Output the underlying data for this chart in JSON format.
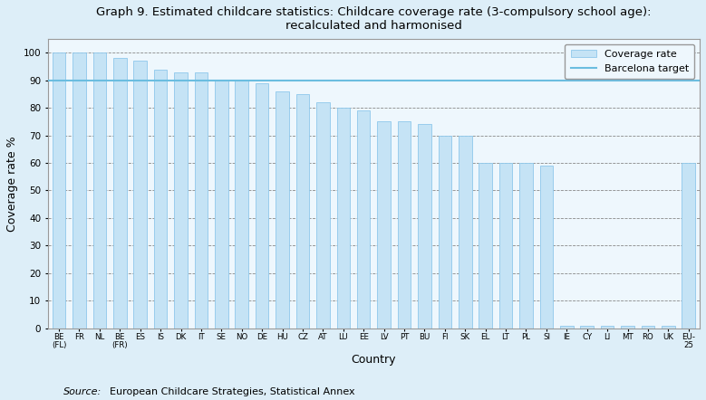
{
  "title": "Graph 9. Estimated childcare statistics: Childcare coverage rate (3-compulsory school age):\nrecalculated and harmonised",
  "xlabel": "Country",
  "ylabel": "Coverage rate %",
  "source_label": "Source:",
  "source_text": "European Childcare Strategies, Statistical Annex",
  "barcelona_target": 90,
  "bar_color": "#c5e3f5",
  "bar_edge_color": "#8ec8eb",
  "target_line_color": "#6bbde0",
  "background_color": "#ddeef8",
  "plot_bg_color": "#eef7fd",
  "categories": [
    "BE\n(FL)",
    "FR",
    "NL",
    "BE\n(FR)",
    "ES",
    "IS",
    "DK",
    "IT",
    "SE",
    "NO",
    "DE",
    "HU",
    "CZ",
    "AT",
    "LU",
    "EE",
    "LV",
    "PT",
    "BU",
    "FI",
    "SK",
    "EL",
    "LT",
    "PL",
    "SI",
    "IE",
    "CY",
    "LI",
    "MT",
    "RO",
    "UK",
    "EU-\n25"
  ],
  "values": [
    100,
    100,
    100,
    98,
    97,
    94,
    93,
    93,
    90,
    90,
    89,
    86,
    85,
    82,
    80,
    79,
    75,
    75,
    74,
    70,
    70,
    60,
    60,
    60,
    59,
    1,
    1,
    1,
    1,
    1,
    1,
    60
  ],
  "ylim": [
    0,
    105
  ],
  "yticks": [
    0,
    10,
    20,
    30,
    40,
    50,
    60,
    70,
    80,
    90,
    100
  ],
  "grid_color": "#888888",
  "grid_style": "--",
  "legend_coverage_label": "Coverage rate",
  "legend_target_label": "Barcelona target"
}
